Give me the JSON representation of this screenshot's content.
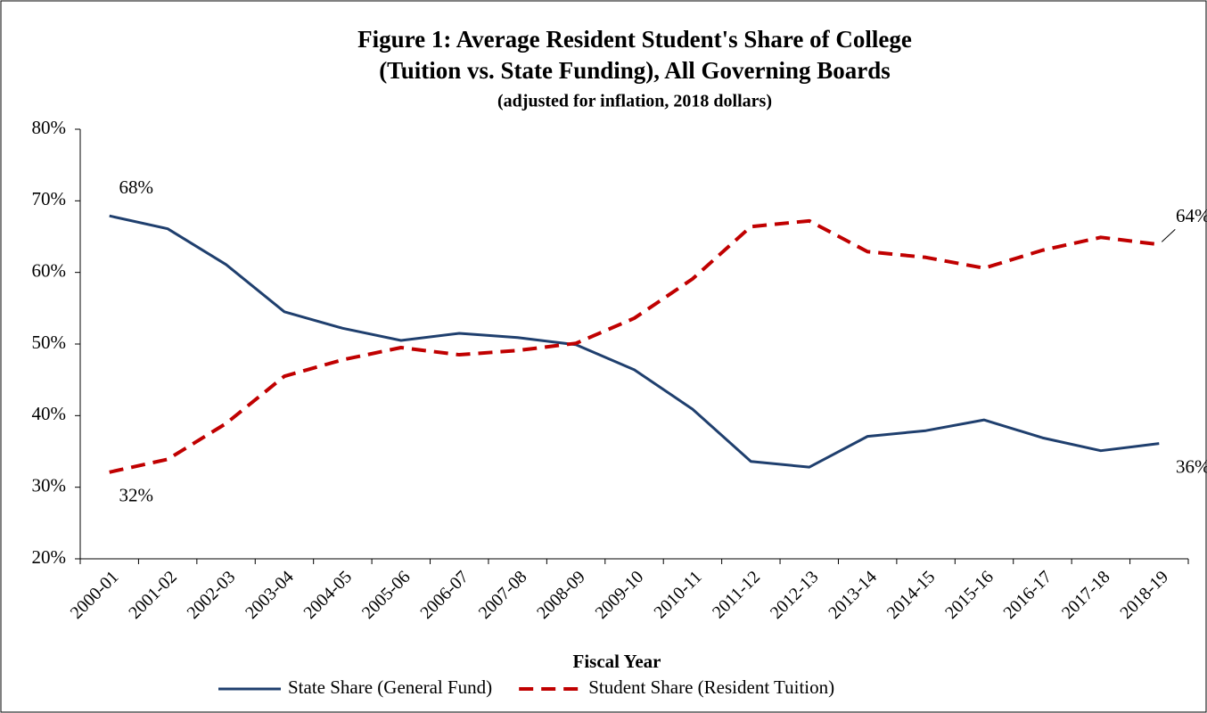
{
  "chart_data": {
    "type": "line",
    "title": "Figure 1: Average Resident Student's Share of College",
    "title_line_2": "(Tuition vs. State Funding), All Governing Boards",
    "subtitle": "(adjusted for inflation, 2018 dollars)",
    "x_label": "Fiscal Year",
    "categories": [
      "2000-01",
      "2001-02",
      "2002-03",
      "2003-04",
      "2004-05",
      "2005-06",
      "2006-07",
      "2007-08",
      "2008-09",
      "2009-10",
      "2010-11",
      "2011-12",
      "2012-13",
      "2013-14",
      "2014-15",
      "2015-16",
      "2016-17",
      "2017-18",
      "2018-19"
    ],
    "series": [
      {
        "name": "State Share (General Fund)",
        "color": "#1f3f6e",
        "dash": false,
        "values": [
          67.9,
          66.1,
          61.1,
          54.5,
          52.2,
          50.5,
          51.5,
          50.9,
          49.9,
          46.4,
          40.9,
          33.6,
          32.8,
          37.1,
          37.9,
          39.4,
          36.9,
          35.1,
          36.1
        ],
        "value_labels": [
          "68%",
          null,
          null,
          null,
          null,
          null,
          null,
          null,
          null,
          null,
          null,
          null,
          null,
          null,
          null,
          null,
          null,
          null,
          "36%"
        ]
      },
      {
        "name": "Student Share (Resident Tuition)",
        "color": "#c00000",
        "dash": true,
        "values": [
          32.1,
          33.9,
          38.9,
          45.5,
          47.8,
          49.5,
          48.5,
          49.1,
          50.1,
          53.6,
          59.1,
          66.4,
          67.2,
          62.9,
          62.1,
          60.6,
          63.1,
          64.9,
          63.9
        ],
        "value_labels": [
          "32%",
          null,
          null,
          null,
          null,
          null,
          null,
          null,
          null,
          null,
          null,
          null,
          null,
          null,
          null,
          null,
          null,
          null,
          "64%"
        ]
      }
    ],
    "ylim": [
      20,
      80
    ],
    "yticks": [
      {
        "value": 20,
        "label": "20%"
      },
      {
        "value": 30,
        "label": "30%"
      },
      {
        "value": 40,
        "label": "40%"
      },
      {
        "value": 50,
        "label": "50%"
      },
      {
        "value": 60,
        "label": "60%"
      },
      {
        "value": 70,
        "label": "70%"
      },
      {
        "value": 80,
        "label": "80%"
      }
    ],
    "grid": false,
    "legend": "bottom"
  }
}
